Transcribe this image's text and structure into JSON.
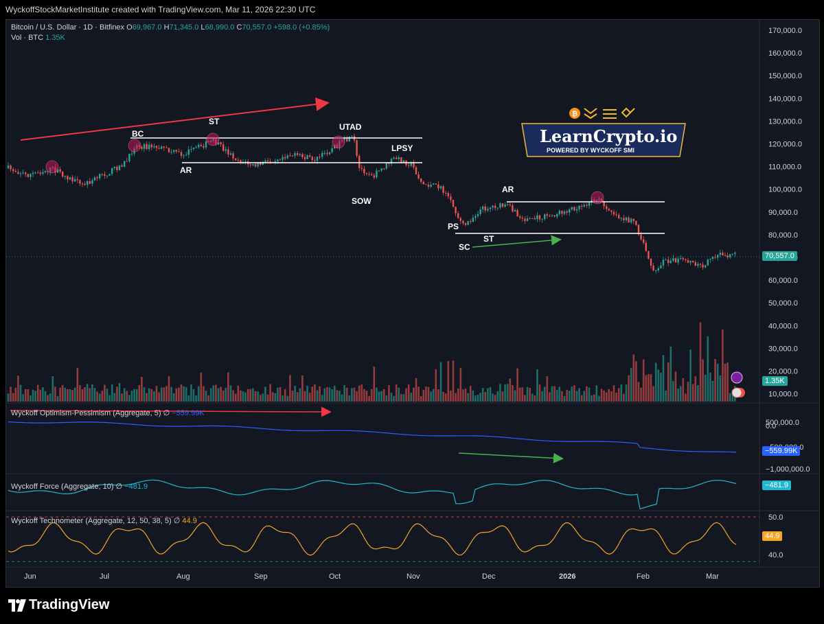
{
  "header": {
    "attribution": "WyckoffStockMarketInstitute created with TradingView.com, Mar 11, 2026 22:30 UTC"
  },
  "legend": {
    "symbol": "Bitcoin / U.S. Dollar · 1D · Bitfinex",
    "o_label": "O",
    "o": "69,967.0",
    "h_label": "H",
    "h": "71,345.0",
    "l_label": "L",
    "l": "68,990.0",
    "c_label": "C",
    "c": "70,557.0",
    "change": "+598.0 (+0.85%)",
    "vol_label": "Vol · BTC",
    "vol_value": "1.35K"
  },
  "indicators": {
    "optimism_pessimism": {
      "label": "Wyckoff Optimism-Pessimism (Aggregate, 5)",
      "symbol": "∅",
      "value": "−559.99K",
      "tag": "−559.99K"
    },
    "force": {
      "label": "Wyckoff Force (Aggregate, 10)",
      "symbol": "∅",
      "value": "−481.9",
      "tag": "−481.9"
    },
    "technometer": {
      "label": "Wyckoff Technometer (Aggregate, 12, 50, 38, 5)",
      "symbol": "∅",
      "value": "44.9",
      "tag": "44.9"
    }
  },
  "price_tags": {
    "last": "70,557.0",
    "volume": "1.35K"
  },
  "logo": {
    "title": "LearnCrypto.io",
    "subtitle": "POWERED BY WYCKOFF SMI"
  },
  "branding": {
    "name": "TradingView"
  },
  "colors": {
    "up": "#26a69a",
    "down": "#ef5350",
    "background": "#131722",
    "op_line": "#2962ff",
    "force_line": "#22b8cf",
    "techno_line": "#f5a623",
    "annotation_red": "#f23645",
    "annotation_green": "#4caf50"
  },
  "annotations": [
    "BC",
    "ST",
    "AR",
    "UTAD",
    "LPSY",
    "SOW",
    "AR",
    "PS",
    "ST",
    "SC"
  ],
  "chart_data": [
    {
      "type": "line",
      "title": "Bitcoin / U.S. Dollar · 1D · Bitfinex",
      "x": [
        "Jun",
        "Jul",
        "Aug",
        "Sep",
        "Oct",
        "Nov",
        "Dec",
        "2026",
        "Feb",
        "Mar"
      ],
      "series": [
        {
          "values": [
            105000,
            108000,
            118000,
            112000,
            118000,
            108000,
            90000,
            92000,
            78000,
            70557
          ]
        }
      ],
      "price_axis": [
        "170,000.0",
        "160,000.0",
        "150,000.0",
        "140,000.0",
        "130,000.0",
        "120,000.0",
        "110,000.0",
        "100,000.0",
        "90,000.0",
        "80,000.0",
        "70,000.0",
        "60,000.0",
        "50,000.0",
        "40,000.0",
        "30,000.0",
        "20,000.0",
        "10,000.0"
      ],
      "ylim": [
        10000,
        170000
      ]
    },
    {
      "type": "bar",
      "title": "Vol · BTC",
      "values": [
        8000,
        15000,
        9000,
        12000,
        18000,
        30000,
        14000,
        25000,
        48000,
        1350
      ]
    },
    {
      "type": "line",
      "title": "Wyckoff Optimism-Pessimism (Aggregate, 5)",
      "axis": [
        "500,000.0",
        "0.0",
        "−500,000.0",
        "−1,000,000.0"
      ],
      "values": [
        -20000,
        -120000,
        -250000,
        -380000,
        -500000,
        -559990
      ]
    },
    {
      "type": "line",
      "title": "Wyckoff Force (Aggregate, 10)",
      "values": [
        -481.9
      ]
    },
    {
      "type": "line",
      "title": "Wyckoff Technometer (Aggregate, 12, 50, 38, 5)",
      "axis": [
        "50.0",
        "40.0"
      ],
      "values": [
        44.9
      ]
    }
  ]
}
